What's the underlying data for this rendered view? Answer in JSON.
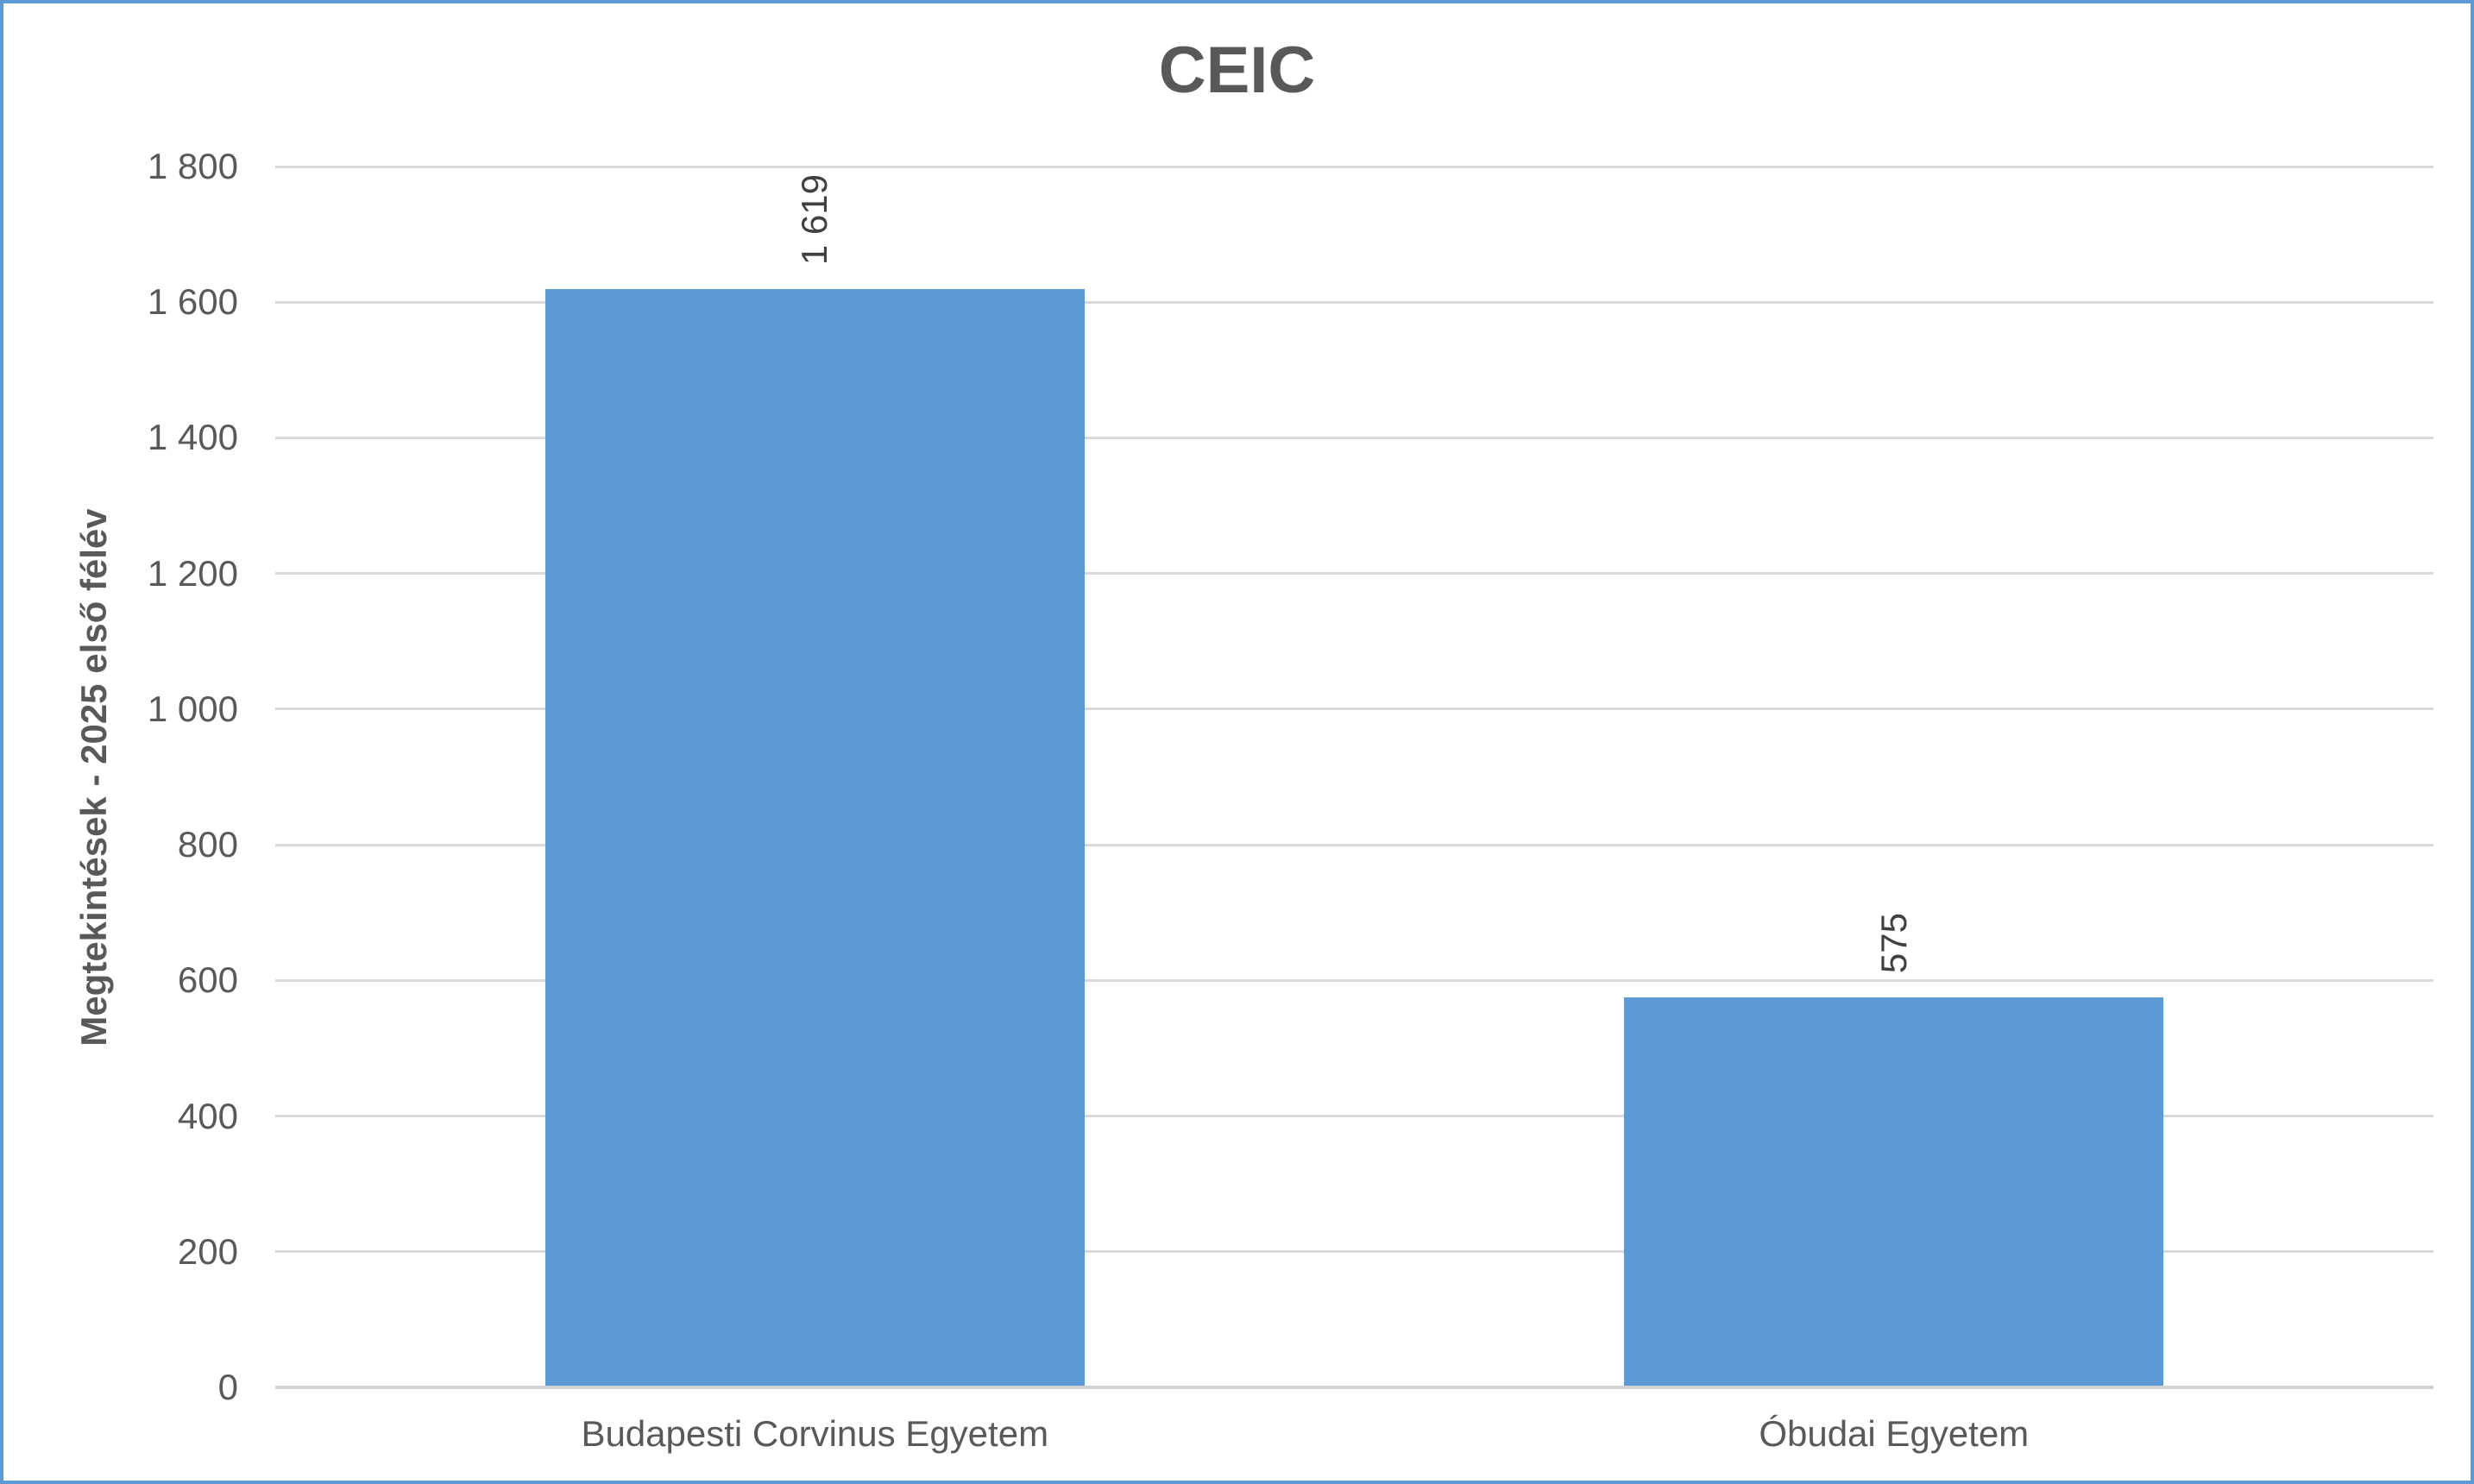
{
  "chart_data": {
    "type": "bar",
    "title": "CEIC",
    "xlabel": "",
    "ylabel": "Megtekintések - 2025 első félév",
    "categories": [
      "Budapesti Corvinus Egyetem",
      "Óbudai Egyetem"
    ],
    "values": [
      1619,
      575
    ],
    "value_labels": [
      "1 619",
      "575"
    ],
    "ylim": [
      0,
      1800
    ],
    "ytick_step": 200,
    "yticks": [
      {
        "value": 0,
        "label": "0"
      },
      {
        "value": 200,
        "label": "200"
      },
      {
        "value": 400,
        "label": "400"
      },
      {
        "value": 600,
        "label": "600"
      },
      {
        "value": 800,
        "label": "800"
      },
      {
        "value": 1000,
        "label": "1 000"
      },
      {
        "value": 1200,
        "label": "1 200"
      },
      {
        "value": 1400,
        "label": "1 400"
      },
      {
        "value": 1600,
        "label": "1 600"
      },
      {
        "value": 1800,
        "label": "1 800"
      }
    ],
    "grid": "horizontal",
    "legend": "none",
    "value_label_rotation": -90,
    "colors": {
      "bar": "#5B9AD5",
      "chart_border": "#5B9BD5",
      "gridline": "#D9D9D9",
      "axis_line": "#D2D2D2",
      "axis_text": "#595959",
      "title_text": "#595959",
      "value_label_text": "#404040"
    }
  }
}
